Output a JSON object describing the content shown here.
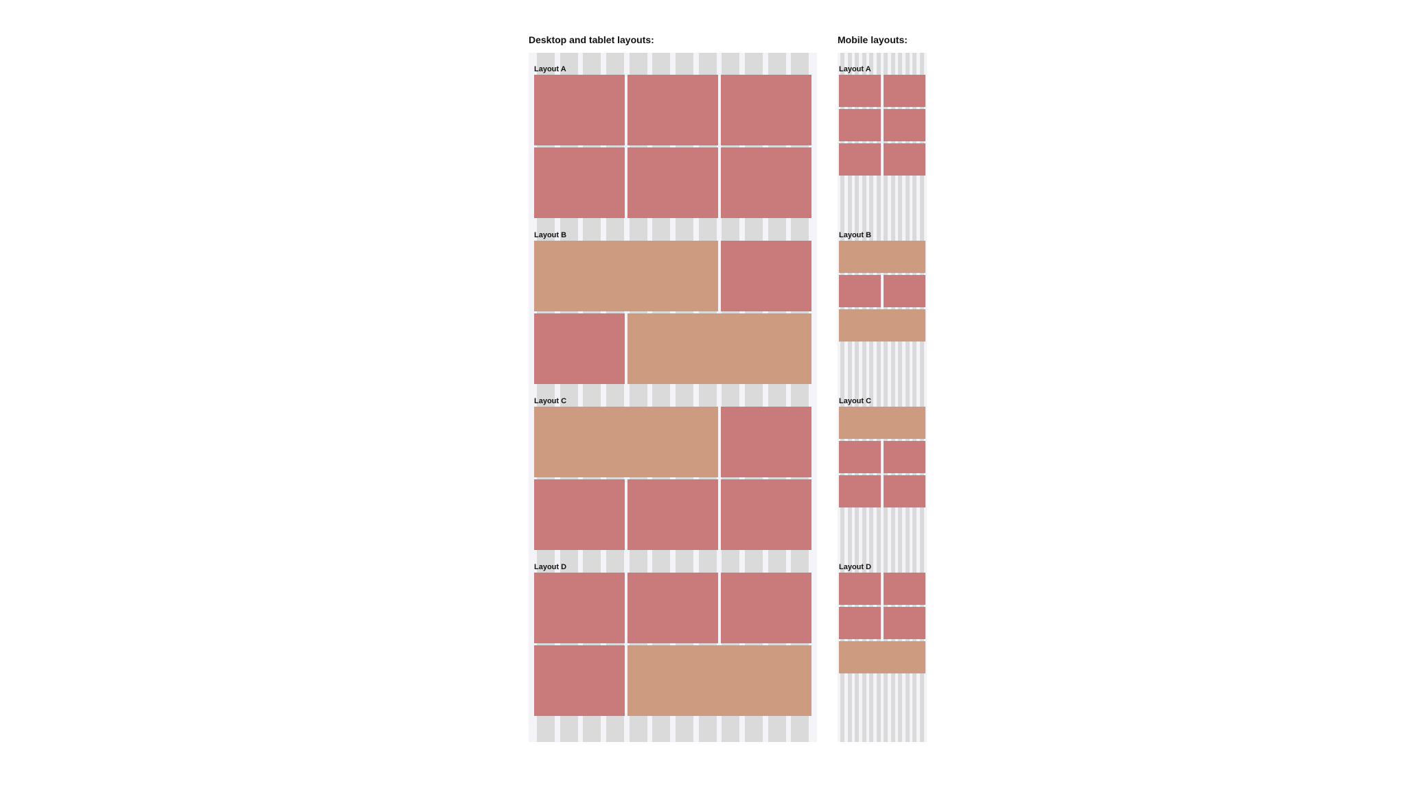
{
  "colors": {
    "square": "#c97a7b",
    "wide": "#cc9b80",
    "gutter_column": "#dadada",
    "panel": "#f3f3f8"
  },
  "desktop": {
    "heading": "Desktop and tablet layouts:",
    "grid_columns": 12,
    "layouts": [
      {
        "label": "Layout A",
        "rows": [
          [
            "square",
            "square",
            "square"
          ],
          [
            "square",
            "square",
            "square"
          ]
        ]
      },
      {
        "label": "Layout B",
        "rows": [
          [
            "wide",
            "square"
          ],
          [
            "square",
            "wide"
          ]
        ]
      },
      {
        "label": "Layout C",
        "rows": [
          [
            "wide",
            "square"
          ],
          [
            "square",
            "square",
            "square"
          ]
        ]
      },
      {
        "label": "Layout D",
        "rows": [
          [
            "square",
            "square",
            "square"
          ],
          [
            "square",
            "wide"
          ]
        ]
      }
    ]
  },
  "mobile": {
    "heading": "Mobile layouts:",
    "grid_columns": 12,
    "layouts": [
      {
        "label": "Layout A",
        "rows": [
          [
            "square",
            "square"
          ],
          [
            "square",
            "square"
          ],
          [
            "square",
            "square"
          ]
        ]
      },
      {
        "label": "Layout B",
        "rows": [
          [
            "wide"
          ],
          [
            "square",
            "square"
          ],
          [
            "wide"
          ]
        ]
      },
      {
        "label": "Layout C",
        "rows": [
          [
            "wide"
          ],
          [
            "square",
            "square"
          ],
          [
            "square",
            "square"
          ]
        ]
      },
      {
        "label": "Layout D",
        "rows": [
          [
            "square",
            "square"
          ],
          [
            "square",
            "square"
          ],
          [
            "wide"
          ]
        ]
      }
    ]
  }
}
